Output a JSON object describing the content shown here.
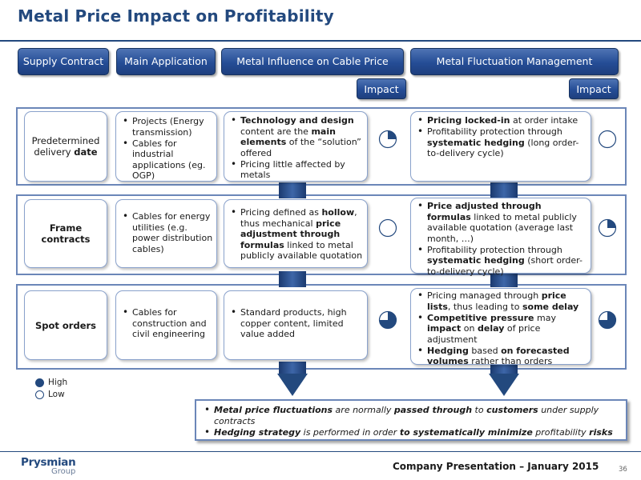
{
  "title": "Metal Price Impact on Profitability",
  "headers": {
    "supply_contract": "Supply Contract",
    "main_application": "Main Application",
    "metal_influence": "Metal Influence on Cable Price",
    "fluctuation_mgmt": "Metal Fluctuation Management",
    "impact_1": "Impact",
    "impact_2": "Impact"
  },
  "rows": [
    {
      "label_plain": "Predetermined delivery",
      "label_bold": "date",
      "application": [
        "Projects (Energy transmission)",
        "Cables for industrial applications (eg. OGP)"
      ],
      "influence_impact_fill": 0.25,
      "management_impact_fill": 0
    },
    {
      "label_bold": "Frame contracts",
      "application": [
        "Cables for energy utilities (e.g. power distribution cables)"
      ],
      "influence_impact_fill": 0,
      "management_impact_fill": 0.25
    },
    {
      "label_bold": "Spot orders",
      "application": [
        "Cables for construction and civil engineering"
      ],
      "influence": [
        "Standard products, high copper content, limited value added"
      ],
      "influence_impact_fill": 0.75,
      "management_impact_fill": 0.75
    }
  ],
  "legend": {
    "high": "High",
    "low": "Low"
  },
  "footer": {
    "company": "Prysmian",
    "group": "Group",
    "presentation": "Company Presentation – January 2015",
    "page": "36"
  },
  "colors": {
    "primary": "#23497e",
    "border": "#6b86b8",
    "header_gradient_top": "#4f74b4"
  }
}
